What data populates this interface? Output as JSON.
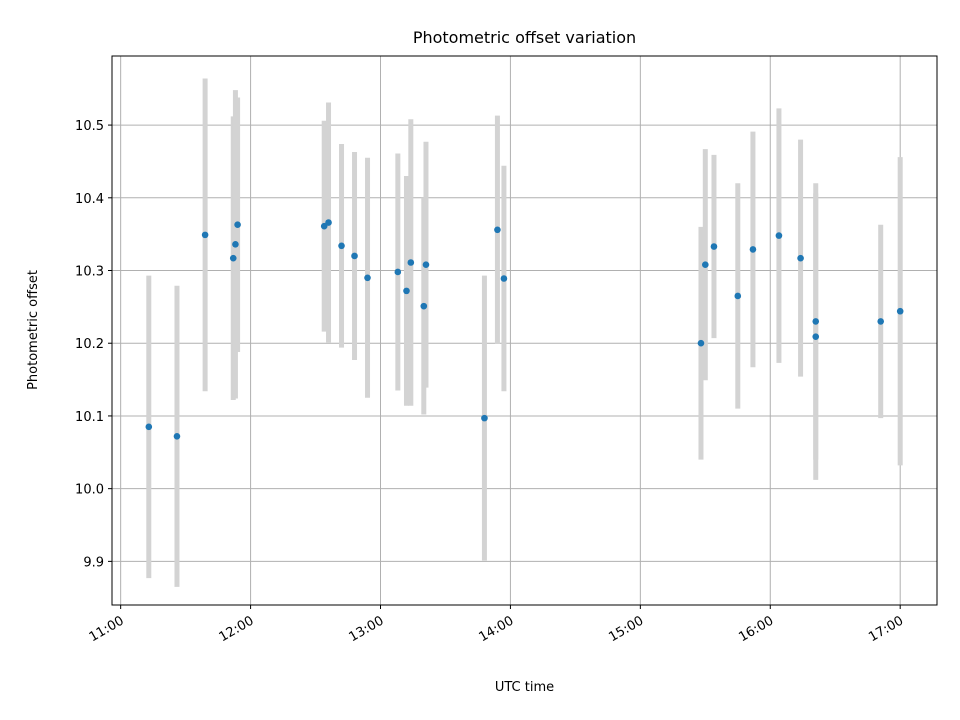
{
  "chart_data": {
    "type": "scatter",
    "title": "Photometric offset variation",
    "xlabel": "UTC time",
    "ylabel": "Photometric offset",
    "x_ticks": [
      "11:00",
      "12:00",
      "13:00",
      "14:00",
      "15:00",
      "16:00",
      "17:00"
    ],
    "y_ticks": [
      "9.9",
      "10.0",
      "10.1",
      "10.2",
      "10.3",
      "10.4",
      "10.5"
    ],
    "xlim": [
      "10:56",
      "17:17"
    ],
    "ylim": [
      9.84,
      10.595
    ],
    "grid": true,
    "point_color": "#1f77b4",
    "errorbar_color": "#d3d3d3",
    "points": [
      {
        "x": "11:13",
        "y": 10.085,
        "err": 0.208
      },
      {
        "x": "11:26",
        "y": 10.072,
        "err": 0.207
      },
      {
        "x": "11:39",
        "y": 10.349,
        "err": 0.215
      },
      {
        "x": "11:52",
        "y": 10.317,
        "err": 0.195
      },
      {
        "x": "11:53",
        "y": 10.336,
        "err": 0.212
      },
      {
        "x": "11:54",
        "y": 10.363,
        "err": 0.175
      },
      {
        "x": "12:34",
        "y": 10.361,
        "err": 0.145
      },
      {
        "x": "12:36",
        "y": 10.366,
        "err": 0.165
      },
      {
        "x": "12:42",
        "y": 10.334,
        "err": 0.14
      },
      {
        "x": "12:48",
        "y": 10.32,
        "err": 0.143
      },
      {
        "x": "12:54",
        "y": 10.29,
        "err": 0.165
      },
      {
        "x": "13:08",
        "y": 10.298,
        "err": 0.163
      },
      {
        "x": "13:12",
        "y": 10.272,
        "err": 0.158
      },
      {
        "x": "13:14",
        "y": 10.311,
        "err": 0.197
      },
      {
        "x": "13:20",
        "y": 10.251,
        "err": 0.149
      },
      {
        "x": "13:21",
        "y": 10.308,
        "err": 0.169
      },
      {
        "x": "13:48",
        "y": 10.097,
        "err": 0.196
      },
      {
        "x": "13:54",
        "y": 10.356,
        "err": 0.157
      },
      {
        "x": "13:57",
        "y": 10.289,
        "err": 0.155
      },
      {
        "x": "15:28",
        "y": 10.2,
        "err": 0.16
      },
      {
        "x": "15:30",
        "y": 10.308,
        "err": 0.159
      },
      {
        "x": "15:34",
        "y": 10.333,
        "err": 0.126
      },
      {
        "x": "15:45",
        "y": 10.265,
        "err": 0.155
      },
      {
        "x": "15:52",
        "y": 10.329,
        "err": 0.162
      },
      {
        "x": "16:04",
        "y": 10.348,
        "err": 0.175
      },
      {
        "x": "16:14",
        "y": 10.317,
        "err": 0.163
      },
      {
        "x": "16:21",
        "y": 10.23,
        "err": 0.19
      },
      {
        "x": "16:21",
        "y": 10.209,
        "err": 0.197
      },
      {
        "x": "16:51",
        "y": 10.23,
        "err": 0.133
      },
      {
        "x": "17:00",
        "y": 10.244,
        "err": 0.212
      }
    ]
  }
}
